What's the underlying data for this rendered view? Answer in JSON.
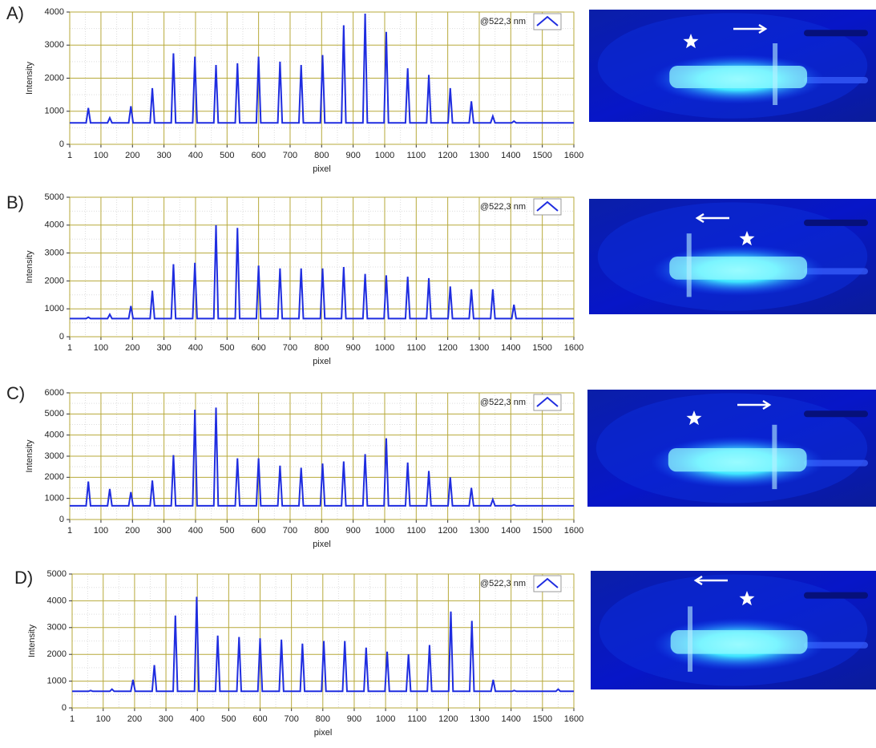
{
  "chart_data": [
    {
      "type": "line",
      "label": "A)",
      "xlabel": "pixel",
      "ylabel": "Intensity",
      "x": [
        1,
        53,
        60,
        67,
        121,
        128,
        135,
        188,
        195,
        202,
        256,
        263,
        270,
        323,
        330,
        337,
        391,
        398,
        405,
        458,
        465,
        472,
        526,
        533,
        540,
        593,
        600,
        607,
        661,
        668,
        675,
        728,
        735,
        742,
        796,
        803,
        810,
        863,
        870,
        877,
        931,
        938,
        945,
        998,
        1005,
        1012,
        1066,
        1073,
        1080,
        1133,
        1140,
        1147,
        1201,
        1208,
        1215,
        1268,
        1275,
        1282,
        1336,
        1343,
        1350,
        1403,
        1410,
        1417,
        1600
      ],
      "series": [
        {
          "name": "@522,3 nm",
          "color": "#1f2de0",
          "values": [
            650,
            650,
            1100,
            650,
            650,
            800,
            650,
            650,
            1150,
            650,
            650,
            1700,
            650,
            650,
            2750,
            650,
            650,
            2650,
            650,
            650,
            2400,
            650,
            650,
            2450,
            650,
            650,
            2650,
            650,
            650,
            2500,
            650,
            650,
            2400,
            650,
            650,
            2700,
            650,
            650,
            3600,
            650,
            650,
            3950,
            650,
            650,
            3400,
            650,
            650,
            2300,
            650,
            650,
            2100,
            650,
            650,
            1700,
            650,
            650,
            1300,
            650,
            650,
            850,
            650,
            650,
            700,
            650,
            650
          ]
        }
      ],
      "xlim": [
        1,
        1600
      ],
      "xticks": [
        1,
        100,
        200,
        300,
        400,
        500,
        600,
        700,
        800,
        900,
        1000,
        1100,
        1200,
        1300,
        1400,
        1500,
        1600
      ],
      "ylim": [
        0,
        4000
      ],
      "yticks": [
        0,
        1000,
        2000,
        3000,
        4000
      ],
      "grid": true,
      "legend": "top-right"
    },
    {
      "type": "line",
      "label": "B)",
      "xlabel": "pixel",
      "ylabel": "Intensity",
      "x": [
        1,
        53,
        60,
        67,
        121,
        128,
        135,
        188,
        195,
        202,
        256,
        263,
        270,
        323,
        330,
        337,
        391,
        398,
        405,
        458,
        465,
        472,
        526,
        533,
        540,
        593,
        600,
        607,
        661,
        668,
        675,
        728,
        735,
        742,
        796,
        803,
        810,
        863,
        870,
        877,
        931,
        938,
        945,
        998,
        1005,
        1012,
        1066,
        1073,
        1080,
        1133,
        1140,
        1147,
        1201,
        1208,
        1215,
        1268,
        1275,
        1282,
        1336,
        1343,
        1350,
        1403,
        1410,
        1417,
        1600
      ],
      "series": [
        {
          "name": "@522,3 nm",
          "color": "#1f2de0",
          "values": [
            650,
            650,
            700,
            650,
            650,
            800,
            650,
            650,
            1100,
            650,
            650,
            1650,
            650,
            650,
            2600,
            650,
            650,
            2650,
            650,
            650,
            4000,
            650,
            650,
            3900,
            650,
            650,
            2550,
            650,
            650,
            2450,
            650,
            650,
            2450,
            650,
            650,
            2450,
            650,
            650,
            2500,
            650,
            650,
            2250,
            650,
            650,
            2200,
            650,
            650,
            2150,
            650,
            650,
            2100,
            650,
            650,
            1800,
            650,
            650,
            1700,
            650,
            650,
            1700,
            650,
            650,
            1150,
            650,
            650
          ]
        }
      ],
      "xlim": [
        1,
        1600
      ],
      "xticks": [
        1,
        100,
        200,
        300,
        400,
        500,
        600,
        700,
        800,
        900,
        1000,
        1100,
        1200,
        1300,
        1400,
        1500,
        1600
      ],
      "ylim": [
        0,
        5000
      ],
      "yticks": [
        0,
        1000,
        2000,
        3000,
        4000,
        5000
      ],
      "grid": true,
      "legend": "top-right"
    },
    {
      "type": "line",
      "label": "C)",
      "xlabel": "pixel",
      "ylabel": "Intensity",
      "x": [
        1,
        53,
        60,
        67,
        121,
        128,
        135,
        188,
        195,
        202,
        256,
        263,
        270,
        323,
        330,
        337,
        391,
        398,
        405,
        458,
        465,
        472,
        526,
        533,
        540,
        593,
        600,
        607,
        661,
        668,
        675,
        728,
        735,
        742,
        796,
        803,
        810,
        863,
        870,
        877,
        931,
        938,
        945,
        998,
        1005,
        1012,
        1066,
        1073,
        1080,
        1133,
        1140,
        1147,
        1201,
        1208,
        1215,
        1268,
        1275,
        1282,
        1336,
        1343,
        1350,
        1403,
        1410,
        1417,
        1600
      ],
      "series": [
        {
          "name": "@522,3 nm",
          "color": "#1f2de0",
          "values": [
            650,
            650,
            1800,
            650,
            650,
            1450,
            650,
            650,
            1300,
            650,
            650,
            1850,
            650,
            650,
            3050,
            650,
            650,
            5200,
            650,
            650,
            5300,
            650,
            650,
            2900,
            650,
            650,
            2900,
            650,
            650,
            2550,
            650,
            650,
            2450,
            650,
            650,
            2650,
            650,
            650,
            2750,
            650,
            650,
            3100,
            650,
            650,
            3850,
            650,
            650,
            2700,
            650,
            650,
            2300,
            650,
            650,
            2000,
            650,
            650,
            1500,
            650,
            650,
            950,
            650,
            650,
            700,
            650,
            650
          ]
        }
      ],
      "xlim": [
        1,
        1600
      ],
      "xticks": [
        1,
        100,
        200,
        300,
        400,
        500,
        600,
        700,
        800,
        900,
        1000,
        1100,
        1200,
        1300,
        1400,
        1500,
        1600
      ],
      "ylim": [
        0,
        6000
      ],
      "yticks": [
        0,
        1000,
        2000,
        3000,
        4000,
        5000,
        6000
      ],
      "grid": true,
      "legend": "top-right"
    },
    {
      "type": "line",
      "label": "D)",
      "xlabel": "pixel",
      "ylabel": "Intensity",
      "x": [
        1,
        53,
        60,
        67,
        121,
        128,
        135,
        188,
        195,
        202,
        256,
        263,
        270,
        323,
        330,
        337,
        391,
        398,
        405,
        458,
        465,
        472,
        526,
        533,
        540,
        593,
        600,
        607,
        661,
        668,
        675,
        728,
        735,
        742,
        796,
        803,
        810,
        863,
        870,
        877,
        931,
        938,
        945,
        998,
        1005,
        1012,
        1066,
        1073,
        1080,
        1133,
        1140,
        1147,
        1201,
        1208,
        1215,
        1268,
        1275,
        1282,
        1336,
        1343,
        1350,
        1403,
        1410,
        1417,
        1543,
        1550,
        1557,
        1600
      ],
      "series": [
        {
          "name": "@522,3 nm",
          "color": "#1f2de0",
          "values": [
            620,
            620,
            650,
            620,
            620,
            700,
            620,
            620,
            1050,
            620,
            620,
            1600,
            620,
            620,
            3450,
            620,
            620,
            4150,
            620,
            620,
            2700,
            620,
            620,
            2650,
            620,
            620,
            2600,
            620,
            620,
            2550,
            620,
            620,
            2400,
            620,
            620,
            2500,
            620,
            620,
            2500,
            620,
            620,
            2250,
            620,
            620,
            2100,
            620,
            620,
            2000,
            620,
            620,
            2350,
            620,
            620,
            3600,
            620,
            620,
            3250,
            620,
            620,
            1050,
            620,
            620,
            650,
            620,
            620,
            700,
            620,
            620
          ]
        }
      ],
      "xlim": [
        1,
        1600
      ],
      "xticks": [
        1,
        100,
        200,
        300,
        400,
        500,
        600,
        700,
        800,
        900,
        1000,
        1100,
        1200,
        1300,
        1400,
        1500,
        1600
      ],
      "ylim": [
        0,
        5000
      ],
      "yticks": [
        0,
        1000,
        2000,
        3000,
        4000,
        5000
      ],
      "grid": true,
      "legend": "top-right"
    }
  ]
}
